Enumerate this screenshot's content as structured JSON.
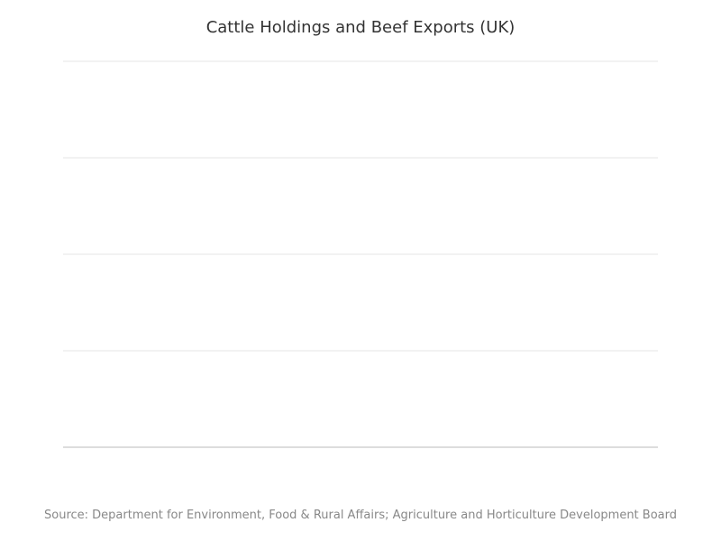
{
  "chart_data": {
    "type": "line",
    "title": "Cattle Holdings and Beef Exports (UK)",
    "xlabel": "",
    "ylabel": "",
    "categories": [],
    "series": [],
    "grid": true,
    "source": "Source: Department for Environment, Food & Rural Affairs; Agriculture and Horticulture Development Board"
  },
  "colors": {
    "gridline": "#e6e6e6",
    "baseline": "#bbbbbb",
    "title": "#333333",
    "source": "#888888"
  }
}
